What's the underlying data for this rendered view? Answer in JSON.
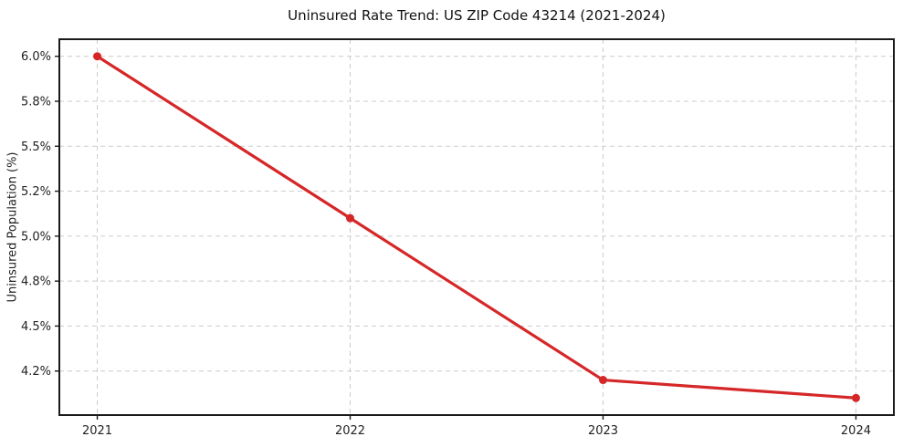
{
  "chart_data": {
    "type": "line",
    "title": "Uninsured Rate Trend: US ZIP Code 43214 (2021-2024)",
    "xlabel": "",
    "ylabel": "Uninsured Population (%)",
    "categories": [
      "2021",
      "2022",
      "2023",
      "2024"
    ],
    "x": [
      2021,
      2022,
      2023,
      2024
    ],
    "values": [
      6.0,
      5.1,
      4.2,
      4.1
    ],
    "xlim": [
      2020.85,
      2024.15
    ],
    "ylim": [
      4.005,
      6.095
    ],
    "y_ticks": [
      {
        "value": 4.25,
        "label": "4.2%"
      },
      {
        "value": 4.5,
        "label": "4.5%"
      },
      {
        "value": 4.75,
        "label": "4.8%"
      },
      {
        "value": 5.0,
        "label": "5.0%"
      },
      {
        "value": 5.25,
        "label": "5.2%"
      },
      {
        "value": 5.5,
        "label": "5.5%"
      },
      {
        "value": 5.75,
        "label": "5.8%"
      },
      {
        "value": 6.0,
        "label": "6.0%"
      }
    ],
    "grid": {
      "visible": true,
      "style": "dashed",
      "color": "#cccccc"
    },
    "legend": "none",
    "line_color": "#d62728",
    "marker": "circle",
    "frame_color": "#1a1a1a"
  }
}
